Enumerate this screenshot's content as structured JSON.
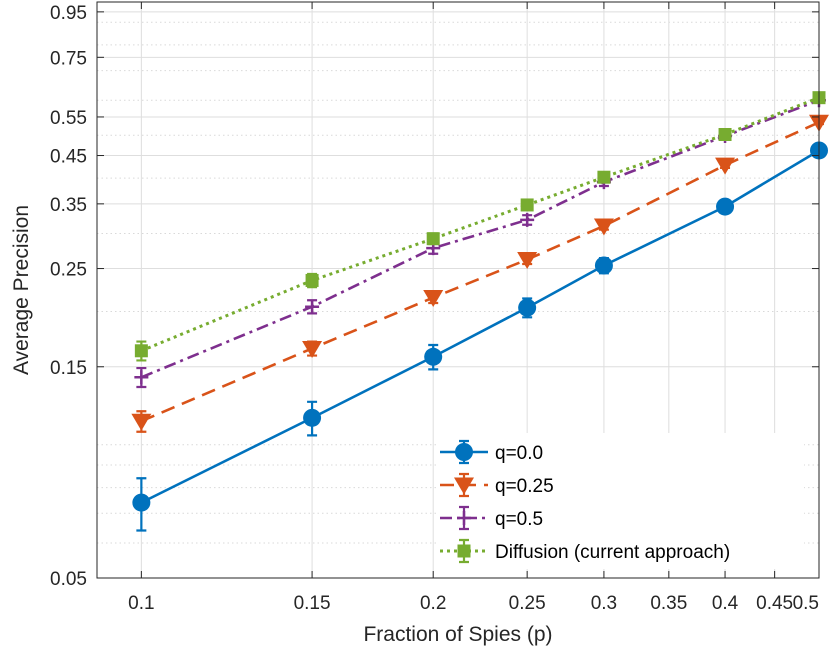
{
  "chart_data": {
    "type": "line",
    "title": "",
    "xlabel": "Fraction of Spies (p)",
    "ylabel": "Average Precision",
    "xscale": "log",
    "yscale": "log",
    "xlim": [
      0.09,
      0.5
    ],
    "ylim": [
      0.05,
      1.0
    ],
    "x": [
      0.1,
      0.15,
      0.2,
      0.25,
      0.3,
      0.4,
      0.5
    ],
    "x_ticks": [
      0.1,
      0.15,
      0.2,
      0.25,
      0.3,
      0.35,
      0.4,
      0.45,
      0.5
    ],
    "x_tick_labels": [
      "0.1",
      "0.15",
      "0.2",
      "0.25",
      "0.3",
      "0.35",
      "0.4",
      "0.45",
      "0.5"
    ],
    "y_ticks": [
      0.05,
      0.15,
      0.25,
      0.35,
      0.45,
      0.55,
      0.75,
      0.95
    ],
    "y_tick_labels": [
      "0.05",
      "0.15",
      "0.25",
      "0.35",
      "0.45",
      "0.55",
      "0.75",
      "0.95"
    ],
    "y_minor_grid": [
      0.06,
      0.07,
      0.08,
      0.09,
      0.1,
      0.2,
      0.3,
      0.4,
      0.5,
      0.6,
      0.7,
      0.8,
      0.9,
      1.0
    ],
    "grid": true,
    "legend_position": "bottom-right",
    "series": [
      {
        "name": "q=0.0",
        "color": "#0072BD",
        "dash": "solid",
        "marker": "circle",
        "values": [
          0.074,
          0.115,
          0.158,
          0.204,
          0.254,
          0.345,
          0.462
        ],
        "err": [
          0.01,
          0.01,
          0.01,
          0.01,
          0.01,
          0.01,
          0.008
        ]
      },
      {
        "name": "q=0.25",
        "color": "#D95319",
        "dash": "dashed",
        "marker": "triangle-down",
        "values": [
          0.113,
          0.165,
          0.215,
          0.262,
          0.312,
          0.428,
          0.535
        ],
        "err": [
          0.006,
          0.006,
          0.006,
          0.006,
          0.006,
          0.006,
          0.005
        ]
      },
      {
        "name": "q=0.5",
        "color": "#7E2F8E",
        "dash": "dashdot",
        "marker": "plus",
        "values": [
          0.142,
          0.205,
          0.278,
          0.322,
          0.392,
          0.498,
          0.6
        ],
        "err": [
          0.007,
          0.007,
          0.008,
          0.008,
          0.008,
          0.007,
          0.007
        ]
      },
      {
        "name": "Diffusion (current approach)",
        "color": "#77AC30",
        "dash": "dotted",
        "marker": "square",
        "values": [
          0.163,
          0.235,
          0.292,
          0.348,
          0.402,
          0.502,
          0.608
        ],
        "err": [
          0.008,
          0.008,
          0.008,
          0.008,
          0.008,
          0.007,
          0.006
        ]
      }
    ]
  }
}
